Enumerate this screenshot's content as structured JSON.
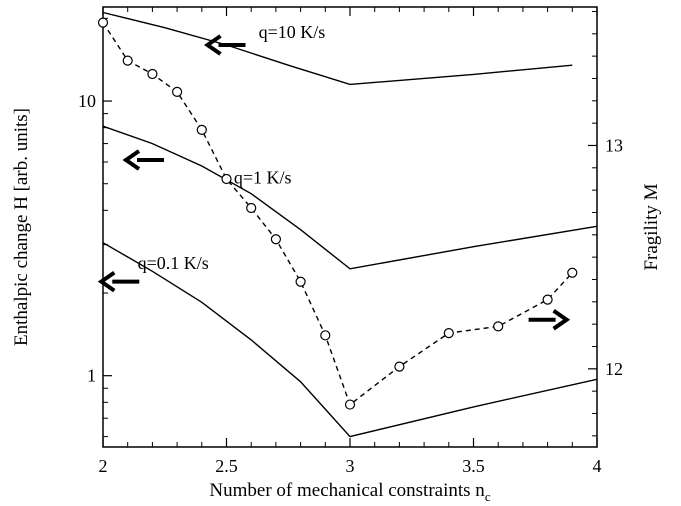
{
  "chart_data": {
    "type": "line",
    "xlabel": "Number of mechanical constraints n",
    "xlabel_sub": "c",
    "ylabel_left": "Enthalpic change H [arb. units]",
    "ylabel_right": "Fragility M",
    "xlim": [
      2,
      4
    ],
    "ylim_left": [
      0.55,
      22
    ],
    "ylim_right": [
      11.65,
      13.62
    ],
    "yscale_left": "log",
    "yscale_right": "linear",
    "xticks": [
      "2",
      "2.5",
      "3",
      "3.5",
      "4"
    ],
    "yticks_left": [
      "1",
      "10"
    ],
    "yticks_right": [
      "12",
      "13"
    ],
    "grid": false,
    "series": [
      {
        "name": "q=10 K/s",
        "axis": "left",
        "style": "solid",
        "x": [
          2.0,
          2.25,
          2.5,
          2.75,
          3.0,
          3.5,
          3.9
        ],
        "y": [
          21.0,
          18.5,
          16.0,
          13.5,
          11.5,
          12.5,
          13.5
        ]
      },
      {
        "name": "q=1 K/s",
        "axis": "left",
        "style": "solid",
        "x": [
          2.0,
          2.2,
          2.4,
          2.6,
          2.8,
          3.0,
          3.5,
          4.0
        ],
        "y": [
          8.1,
          7.0,
          5.8,
          4.6,
          3.4,
          2.45,
          2.95,
          3.5
        ]
      },
      {
        "name": "q=0.1 K/s",
        "axis": "left",
        "style": "solid",
        "x": [
          2.0,
          2.2,
          2.4,
          2.6,
          2.8,
          3.0,
          3.5,
          4.0
        ],
        "y": [
          3.05,
          2.4,
          1.85,
          1.35,
          0.95,
          0.6,
          0.77,
          0.97
        ]
      },
      {
        "name": "Fragility M",
        "axis": "right",
        "style": "dashed",
        "marker": "open-circle",
        "x": [
          2.0,
          2.1,
          2.2,
          2.3,
          2.4,
          2.5,
          2.6,
          2.7,
          2.8,
          2.9,
          3.0,
          3.2,
          3.4,
          3.6,
          3.8,
          3.9
        ],
        "y": [
          13.55,
          13.38,
          13.32,
          13.24,
          13.07,
          12.85,
          12.72,
          12.58,
          12.39,
          12.15,
          11.84,
          12.01,
          12.16,
          12.19,
          12.31,
          12.43
        ]
      }
    ],
    "annotations": [
      {
        "text": "q=10 K/s",
        "x": 2.63,
        "y_left": 17.0
      },
      {
        "text": "q=1 K/s",
        "x": 2.53,
        "y_left": 5.0
      },
      {
        "text": "q=0.1 K/s",
        "x": 2.14,
        "y_left": 2.45
      }
    ],
    "arrows": [
      {
        "direction": "left",
        "axis": "left",
        "x": 2.5,
        "y_left": 16.0
      },
      {
        "direction": "left",
        "axis": "left",
        "x": 2.17,
        "y_left": 6.1
      },
      {
        "direction": "left",
        "axis": "left",
        "x": 2.07,
        "y_left": 2.2
      },
      {
        "direction": "right",
        "axis": "right",
        "x": 3.8,
        "y_right": 12.22
      }
    ]
  }
}
